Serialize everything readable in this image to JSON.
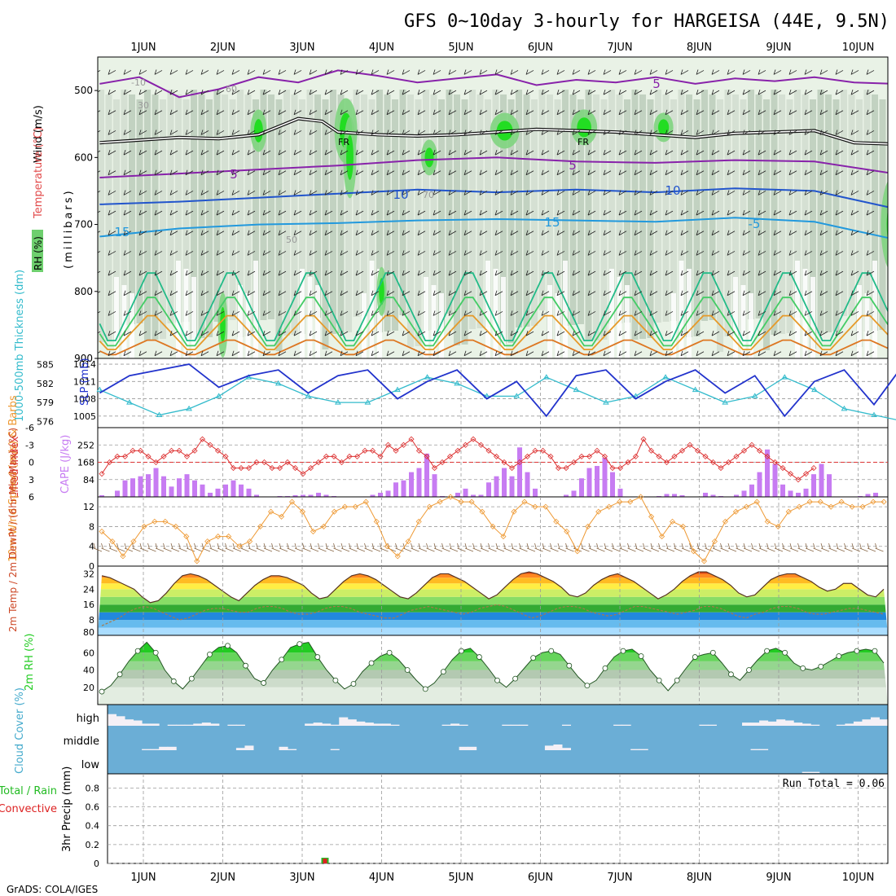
{
  "title": "GFS 0~10day 3-hourly for HARGEISA (44E, 9.5N)",
  "footer": "GrADS: COLA/IGES",
  "colors": {
    "grid": "#9a9a9a",
    "slp": "#2233cc",
    "thickness": "#33bbcc",
    "lifted": "#dd3333",
    "cape": "#c77cf2",
    "wind": "#ee9933",
    "temp_fill": "#f07a1a",
    "dewpt": "#a87a4a",
    "rh_green": "#22cc22",
    "cloud": "#6baed6",
    "cloud_white": "#f4f0f6",
    "precip_green": "#22bb22",
    "precip_red": "#dd2222"
  },
  "chart_data": [
    {
      "id": "sounding",
      "type": "heatmap",
      "ylabel_wind": "Wind (m/s)",
      "ylabel_temp": "Temperature (°C)",
      "ylabel_pres": "(millibars)",
      "rh_label": "RH (%)",
      "x_ticks": [
        "1JUN",
        "2JUN",
        "3JUN",
        "4JUN",
        "5JUN",
        "6JUN",
        "7JUN",
        "8JUN",
        "9JUN",
        "10JUN"
      ],
      "y_ticks": [
        "500",
        "600",
        "700",
        "800",
        "900"
      ],
      "ylim": [
        450,
        900
      ],
      "freezing_label": "FR",
      "contour_labels": [
        "5",
        "5",
        "5",
        "10",
        "10",
        "15",
        "15",
        "-5",
        "-10",
        "30",
        "50",
        "60",
        "70"
      ],
      "isotherm_5": [
        [
          0.0,
          490
        ],
        [
          0.5,
          480
        ],
        [
          1.0,
          510
        ],
        [
          1.5,
          498
        ],
        [
          2.0,
          480
        ],
        [
          2.5,
          488
        ],
        [
          3.0,
          470
        ],
        [
          3.5,
          478
        ],
        [
          4.0,
          488
        ],
        [
          4.5,
          482
        ],
        [
          5.0,
          476
        ],
        [
          5.5,
          492
        ],
        [
          6.0,
          484
        ],
        [
          6.5,
          488
        ],
        [
          7.0,
          480
        ],
        [
          7.5,
          490
        ],
        [
          8.0,
          482
        ],
        [
          8.5,
          486
        ],
        [
          9.0,
          480
        ],
        [
          9.5,
          488
        ],
        [
          10.0,
          490
        ],
        [
          10.2,
          494
        ]
      ],
      "freezing_level": [
        [
          0.0,
          578
        ],
        [
          0.5,
          574
        ],
        [
          1.0,
          570
        ],
        [
          1.5,
          572
        ],
        [
          2.0,
          566
        ],
        [
          2.5,
          542
        ],
        [
          2.8,
          546
        ],
        [
          3.0,
          562
        ],
        [
          3.5,
          566
        ],
        [
          4.0,
          568
        ],
        [
          4.5,
          566
        ],
        [
          5.0,
          562
        ],
        [
          5.5,
          558
        ],
        [
          6.0,
          560
        ],
        [
          6.5,
          562
        ],
        [
          7.0,
          566
        ],
        [
          7.5,
          570
        ],
        [
          8.0,
          564
        ],
        [
          8.5,
          562
        ],
        [
          9.0,
          560
        ],
        [
          9.5,
          578
        ],
        [
          10.0,
          580
        ],
        [
          10.2,
          582
        ]
      ],
      "iso5": [
        [
          0.0,
          630
        ],
        [
          1.0,
          624
        ],
        [
          2.0,
          618
        ],
        [
          3.0,
          612
        ],
        [
          4.0,
          604
        ],
        [
          5.0,
          600
        ],
        [
          6.0,
          606
        ],
        [
          7.0,
          608
        ],
        [
          8.0,
          604
        ],
        [
          9.0,
          606
        ],
        [
          10.0,
          624
        ],
        [
          10.2,
          630
        ]
      ],
      "iso10": [
        [
          0.0,
          670
        ],
        [
          1.0,
          666
        ],
        [
          2.0,
          660
        ],
        [
          3.0,
          654
        ],
        [
          4.0,
          648
        ],
        [
          5.0,
          652
        ],
        [
          6.0,
          648
        ],
        [
          7.0,
          652
        ],
        [
          8.0,
          646
        ],
        [
          9.0,
          650
        ],
        [
          10.0,
          676
        ],
        [
          10.2,
          680
        ]
      ],
      "iso15": [
        [
          0.0,
          718
        ],
        [
          1.0,
          706
        ],
        [
          2.0,
          700
        ],
        [
          3.0,
          698
        ],
        [
          4.0,
          694
        ],
        [
          5.0,
          692
        ],
        [
          6.0,
          694
        ],
        [
          7.0,
          696
        ],
        [
          8.0,
          690
        ],
        [
          9.0,
          696
        ],
        [
          10.0,
          722
        ],
        [
          10.2,
          726
        ]
      ],
      "note": "shaded relative humidity with isotherms and wind barbs"
    },
    {
      "id": "slp_thickness",
      "type": "line",
      "ylabel_left": "1000-500mb Thickness (dm)",
      "ylabel_right": "SLP (mb)",
      "thickness_ticks": [
        "585",
        "582",
        "579",
        "576"
      ],
      "slp_ticks": [
        "1014",
        "1011",
        "1008",
        "1005"
      ],
      "ylim_thickness": [
        575,
        586
      ],
      "ylim_slp": [
        1003,
        1015
      ],
      "x": [
        0,
        0.375,
        0.75,
        1.125,
        1.5,
        1.875,
        2.25,
        2.625,
        3.0,
        3.375,
        3.75,
        4.125,
        4.5,
        4.875,
        5.25,
        5.625,
        6.0,
        6.375,
        6.75,
        7.125,
        7.5,
        7.875,
        8.25,
        8.625,
        9.0,
        9.375,
        9.75,
        10.125
      ],
      "slp": [
        1009,
        1012,
        1013,
        1014,
        1010,
        1012,
        1013,
        1009,
        1012,
        1013,
        1008,
        1011,
        1013,
        1008,
        1011,
        1005,
        1012,
        1013,
        1008,
        1011,
        1013,
        1009,
        1012,
        1005,
        1011,
        1013,
        1007,
        1014
      ],
      "thickness": [
        581,
        579,
        577,
        578,
        580,
        583,
        582,
        580,
        579,
        579,
        581,
        583,
        582,
        580,
        580,
        583,
        581,
        579,
        580,
        583,
        581,
        579,
        580,
        583,
        581,
        578,
        577,
        576
      ]
    },
    {
      "id": "cape_lifted",
      "type": "bar",
      "ylabel_left": "Lifted Index",
      "ylabel_right": "CAPE (J/kg)",
      "li_ticks": [
        "-6",
        "-3",
        "0",
        "3",
        "6"
      ],
      "cape_ticks": [
        "252",
        "168",
        "84"
      ],
      "ylim_cape": [
        0,
        336
      ],
      "cape": [
        8,
        0,
        30,
        80,
        90,
        100,
        110,
        140,
        100,
        50,
        90,
        110,
        80,
        60,
        20,
        40,
        60,
        80,
        60,
        40,
        10,
        2,
        0,
        4,
        4,
        8,
        10,
        10,
        20,
        10,
        4,
        0,
        0,
        0,
        2,
        10,
        20,
        30,
        70,
        80,
        120,
        140,
        210,
        110,
        4,
        0,
        20,
        40,
        10,
        10,
        70,
        100,
        140,
        100,
        240,
        120,
        40,
        0,
        2,
        0,
        10,
        30,
        90,
        140,
        150,
        190,
        120,
        40,
        0,
        0,
        0,
        0,
        4,
        14,
        14,
        8,
        0,
        0,
        20,
        10,
        4,
        0,
        10,
        30,
        60,
        120,
        230,
        160,
        60,
        30,
        20,
        40,
        110,
        160,
        110,
        0,
        0,
        0,
        4,
        14,
        20
      ],
      "lifted_index": [
        2,
        0,
        -1,
        -1,
        -2,
        -2,
        -1,
        0,
        -1,
        -2,
        -2,
        -1,
        -2,
        -4,
        -3,
        -2,
        -1,
        1,
        1,
        1,
        0,
        0,
        1,
        1,
        0,
        1,
        2,
        1,
        0,
        -1,
        -1,
        0,
        -1,
        -1,
        -2,
        -2,
        -1,
        -3,
        -2,
        -3,
        -4,
        -2,
        -1,
        1,
        0,
        -1,
        -2,
        -3,
        -4,
        -3,
        -2,
        -1,
        0,
        1,
        0,
        -1,
        -2,
        -2,
        -1,
        1,
        1,
        0,
        -1,
        -1,
        -2,
        -1,
        1,
        1,
        0,
        -1,
        -4,
        -2,
        -1,
        0,
        -1,
        -2,
        -3,
        -2,
        -1,
        0,
        1,
        0,
        -1,
        -2,
        -3,
        -2,
        -1,
        0,
        1,
        2,
        3,
        2,
        1
      ],
      "li_ylim": [
        6,
        -6
      ]
    },
    {
      "id": "wind10m",
      "type": "line",
      "ylabel": "10m Wind Speed (m/s) & Barbs",
      "y_ticks": [
        "12",
        "8",
        "4",
        "0"
      ],
      "ylim": [
        0,
        14
      ],
      "speed": [
        7,
        5,
        2,
        5,
        8,
        9,
        9,
        8,
        6,
        1,
        5,
        6,
        6,
        4,
        5,
        8,
        11,
        10,
        13,
        11,
        7,
        8,
        11,
        12,
        12,
        13,
        9,
        4,
        2,
        5,
        9,
        12,
        13,
        14,
        13,
        13,
        11,
        8,
        6,
        11,
        13,
        12,
        12,
        9,
        7,
        3,
        8,
        11,
        12,
        13,
        13,
        14,
        10,
        6,
        9,
        8,
        3,
        1,
        5,
        9,
        11,
        12,
        13,
        9,
        8,
        11,
        12,
        13,
        13,
        12,
        13,
        12,
        12,
        13,
        13
      ]
    },
    {
      "id": "temperature",
      "type": "area",
      "ylabel": "2m Temp / 2m DewPt / (6hr Min/Max) (°C)",
      "y_ticks": [
        "32",
        "24",
        "16",
        "8",
        "80"
      ],
      "ylim": [
        0,
        36
      ],
      "temp": [
        31,
        30,
        28,
        26,
        24,
        20,
        17,
        18,
        22,
        27,
        31,
        32,
        31,
        29,
        26,
        23,
        20,
        18,
        22,
        26,
        29,
        31,
        31,
        30,
        28,
        26,
        22,
        19,
        20,
        24,
        28,
        31,
        32,
        31,
        29,
        26,
        23,
        20,
        19,
        22,
        26,
        30,
        32,
        32,
        30,
        28,
        25,
        22,
        19,
        21,
        25,
        29,
        32,
        33,
        32,
        30,
        28,
        25,
        21,
        20,
        22,
        26,
        29,
        31,
        32,
        30,
        28,
        25,
        22,
        19,
        21,
        24,
        28,
        31,
        33,
        33,
        31,
        29,
        26,
        22,
        20,
        21,
        25,
        29,
        31,
        32,
        32,
        30,
        28,
        25,
        23,
        24,
        27,
        27,
        24,
        21,
        20,
        24
      ],
      "dewpoint": [
        5,
        7,
        9,
        12,
        14,
        15,
        14,
        12,
        10,
        8,
        9,
        11,
        13,
        14,
        14,
        13,
        12,
        12,
        14,
        15,
        15,
        14,
        12,
        11,
        11,
        12,
        14,
        15,
        15,
        14,
        12,
        11,
        10,
        9,
        9,
        11,
        13,
        14,
        15,
        14,
        13,
        12,
        11,
        12,
        14,
        15,
        16,
        15,
        13,
        11,
        9,
        10,
        12,
        14,
        15,
        15,
        14,
        12,
        11,
        10,
        11,
        13,
        15,
        15,
        14,
        13,
        12,
        11,
        12,
        13,
        15,
        15,
        14,
        12,
        10,
        9,
        11,
        12,
        14,
        15,
        15,
        14,
        12,
        11,
        11,
        12,
        13,
        14,
        14,
        13,
        12,
        11
      ]
    },
    {
      "id": "rh2m",
      "type": "area",
      "ylabel": "2m RH (%)",
      "y_ticks": [
        "60",
        "40",
        "20"
      ],
      "ylim": [
        0,
        80
      ],
      "rh": [
        15,
        22,
        35,
        50,
        62,
        72,
        60,
        40,
        27,
        18,
        30,
        44,
        58,
        66,
        68,
        60,
        45,
        30,
        25,
        40,
        52,
        66,
        70,
        72,
        55,
        40,
        28,
        18,
        24,
        38,
        48,
        56,
        60,
        52,
        40,
        28,
        18,
        25,
        38,
        52,
        62,
        65,
        55,
        42,
        28,
        20,
        30,
        42,
        54,
        60,
        62,
        58,
        45,
        32,
        22,
        28,
        42,
        55,
        62,
        64,
        56,
        40,
        28,
        16,
        28,
        42,
        55,
        58,
        60,
        48,
        35,
        28,
        40,
        52,
        62,
        65,
        60,
        48,
        42,
        40,
        44,
        50,
        56,
        60,
        62,
        64,
        62,
        48
      ]
    },
    {
      "id": "cloud",
      "type": "heatmap",
      "ylabel": "Cloud Cover (%)",
      "levels": [
        "high",
        "middle",
        "low"
      ],
      "high": [
        55,
        45,
        30,
        25,
        10,
        10,
        0,
        5,
        5,
        5,
        10,
        15,
        10,
        0,
        5,
        5,
        0,
        0,
        0,
        0,
        0,
        0,
        0,
        10,
        15,
        10,
        5,
        40,
        30,
        20,
        15,
        10,
        10,
        5,
        0,
        0,
        0,
        0,
        0,
        5,
        10,
        5,
        0,
        0,
        0,
        0,
        5,
        5,
        5,
        0,
        0,
        0,
        0,
        5,
        0,
        0,
        0,
        0,
        0,
        5,
        5,
        0,
        0,
        0,
        0,
        0,
        0,
        0,
        0,
        5,
        5,
        0,
        0,
        0,
        15,
        15,
        25,
        20,
        30,
        25,
        15,
        10,
        5,
        0,
        0,
        5,
        10,
        20,
        30,
        40,
        30
      ],
      "middle": [
        0,
        0,
        0,
        0,
        5,
        5,
        15,
        15,
        0,
        0,
        0,
        0,
        0,
        0,
        0,
        10,
        20,
        0,
        0,
        0,
        15,
        5,
        0,
        0,
        0,
        0,
        5,
        0,
        0,
        0,
        0,
        0,
        0,
        0,
        0,
        0,
        0,
        0,
        0,
        0,
        0,
        15,
        15,
        0,
        0,
        0,
        0,
        0,
        0,
        0,
        0,
        20,
        25,
        10,
        0,
        0,
        0,
        0,
        0,
        0,
        0,
        5,
        5,
        0,
        0,
        0,
        0,
        0,
        0,
        0,
        0,
        0,
        0,
        0,
        0,
        5,
        5,
        0,
        0,
        0,
        0,
        0,
        0,
        0,
        0,
        0,
        0,
        0
      ],
      "low": [
        0,
        0,
        0,
        0,
        0,
        0,
        0,
        0,
        0,
        0,
        0,
        0,
        0,
        0,
        0,
        0,
        0,
        0,
        0,
        0,
        0,
        0,
        0,
        0,
        0,
        0,
        0,
        0,
        0,
        0,
        0,
        0,
        0,
        0,
        0,
        0,
        0,
        0,
        0,
        0,
        0,
        0,
        0,
        0,
        0,
        0,
        0,
        0,
        0,
        0,
        0,
        0,
        0,
        0,
        0,
        0,
        0,
        0,
        0,
        0,
        0,
        0,
        0,
        0,
        0,
        0,
        0,
        0,
        0,
        0,
        0,
        0,
        0,
        0,
        0,
        0,
        0,
        0,
        0,
        0,
        0,
        5,
        5,
        0,
        0,
        0,
        0,
        0
      ]
    },
    {
      "id": "precip",
      "type": "bar",
      "ylabel": "3hr Precip (mm)",
      "legend_total": "Total / Rain",
      "legend_convective": "Convective",
      "run_total_label": "Run Total = 0.06",
      "y_ticks": [
        "0.8",
        "0.6",
        "0.4",
        "0.2",
        "0"
      ],
      "ylim": [
        0,
        0.95
      ],
      "bars": [
        {
          "x": 2.75,
          "total": 0.06,
          "convective": 0.06
        }
      ]
    }
  ]
}
